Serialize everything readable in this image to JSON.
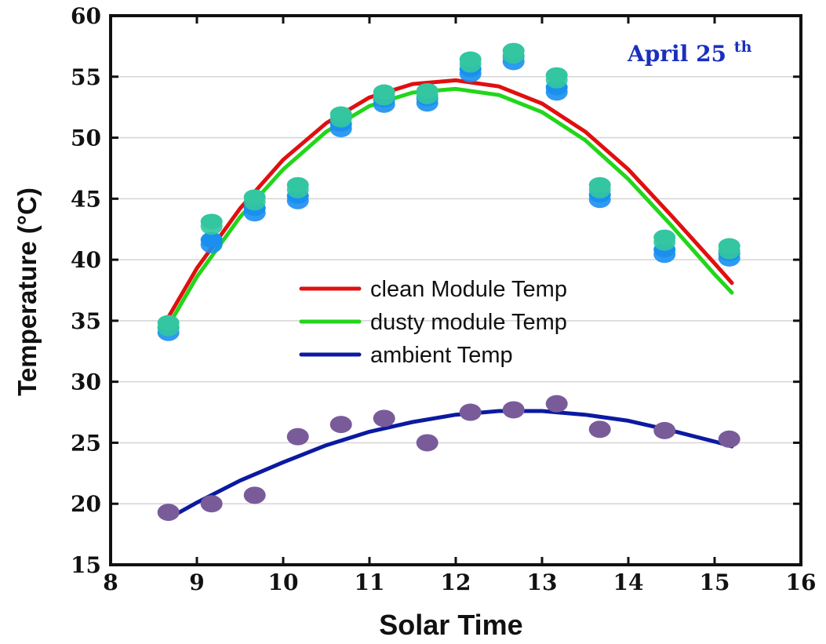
{
  "chart_data": {
    "type": "scatter",
    "title": "",
    "annotation": {
      "text": "April 25",
      "superscript": "th"
    },
    "xlabel": "Solar Time",
    "ylabel": "Temperature (°C)",
    "xlim": [
      8,
      16
    ],
    "ylim": [
      15,
      60
    ],
    "xticks": [
      8,
      9,
      10,
      11,
      12,
      13,
      14,
      15,
      16
    ],
    "yticks": [
      15,
      20,
      25,
      30,
      35,
      40,
      45,
      50,
      55,
      60
    ],
    "grid": "horizontal",
    "legend_position": "center",
    "legend": [
      "clean Module Temp",
      "dusty module Temp",
      "ambient Temp"
    ],
    "series": [
      {
        "name": "clean Module Temp",
        "color": "#e01010",
        "marker_color": "#1a8ff0",
        "x": [
          8.67,
          9.17,
          9.67,
          10.17,
          10.67,
          11.17,
          11.67,
          12.17,
          12.67,
          13.17,
          13.67,
          14.42,
          15.17
        ],
        "y": [
          34.3,
          41.5,
          44.1,
          45.1,
          51.0,
          53.0,
          53.1,
          55.5,
          56.5,
          54.0,
          45.2,
          40.7,
          40.4
        ],
        "fit_x": [
          8.67,
          9.0,
          9.5,
          10.0,
          10.5,
          11.0,
          11.5,
          12.0,
          12.5,
          13.0,
          13.5,
          14.0,
          14.5,
          15.0,
          15.2
        ],
        "fit_y": [
          35.3,
          39.3,
          44.2,
          48.2,
          51.2,
          53.3,
          54.4,
          54.7,
          54.2,
          52.8,
          50.5,
          47.4,
          43.6,
          39.7,
          38.1
        ]
      },
      {
        "name": "dusty module Temp",
        "color": "#22d61a",
        "marker_color": "#33c6a0",
        "x": [
          8.67,
          9.17,
          9.67,
          10.17,
          10.67,
          11.17,
          11.67,
          12.17,
          12.67,
          13.17,
          13.67,
          14.42,
          15.17
        ],
        "y": [
          34.7,
          43.0,
          45.0,
          46.0,
          51.8,
          53.6,
          53.7,
          56.3,
          57.0,
          55.0,
          46.0,
          41.7,
          41.0
        ],
        "fit_x": [
          8.67,
          9.0,
          9.5,
          10.0,
          10.5,
          11.0,
          11.5,
          12.0,
          12.5,
          13.0,
          13.5,
          14.0,
          14.5,
          15.0,
          15.2
        ],
        "fit_y": [
          34.6,
          38.6,
          43.5,
          47.4,
          50.5,
          52.6,
          53.7,
          54.0,
          53.5,
          52.1,
          49.8,
          46.6,
          42.8,
          38.8,
          37.3
        ]
      },
      {
        "name": "ambient Temp",
        "color": "#0b1aa0",
        "marker_color": "#7a5b9a",
        "x": [
          8.67,
          9.17,
          9.67,
          10.17,
          10.67,
          11.17,
          11.67,
          12.17,
          12.67,
          13.17,
          13.67,
          14.42,
          15.17
        ],
        "y": [
          19.3,
          20.0,
          20.7,
          25.5,
          26.5,
          27.0,
          25.0,
          27.5,
          27.7,
          28.2,
          26.1,
          26.0,
          25.3
        ],
        "fit_x": [
          8.67,
          9.0,
          9.5,
          10.0,
          10.5,
          11.0,
          11.5,
          12.0,
          12.5,
          13.0,
          13.5,
          14.0,
          14.5,
          15.0,
          15.2
        ],
        "fit_y": [
          18.8,
          20.1,
          21.9,
          23.4,
          24.8,
          25.9,
          26.7,
          27.3,
          27.6,
          27.6,
          27.3,
          26.8,
          26.0,
          25.1,
          24.7
        ]
      }
    ]
  }
}
